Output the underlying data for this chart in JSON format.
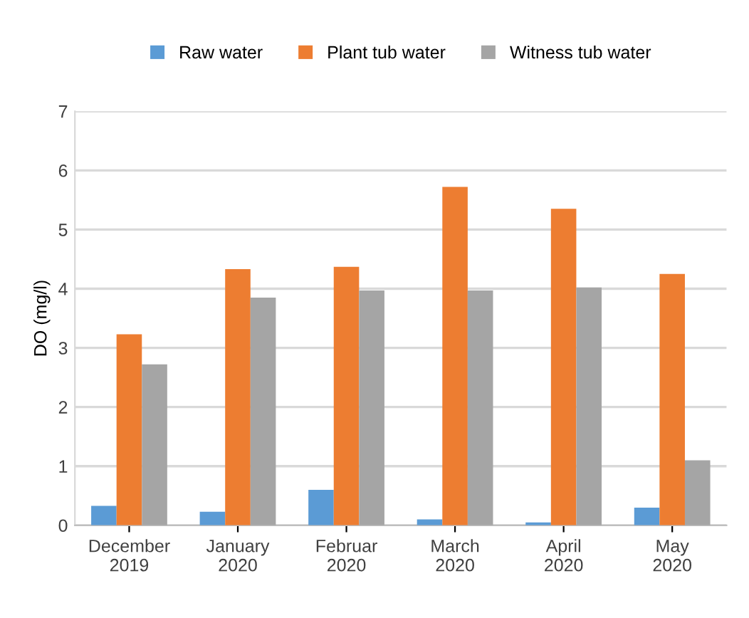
{
  "chart_data": {
    "type": "bar",
    "ylabel": "DO (mg/l)",
    "categories": [
      "December\n2019",
      "January\n2020",
      "Februar\n2020",
      "March\n2020",
      "April\n2020",
      "May\n2020"
    ],
    "series": [
      {
        "name": "Raw water",
        "color": "#5b9bd5",
        "values": [
          0.33,
          0.23,
          0.6,
          0.1,
          0.05,
          0.3
        ]
      },
      {
        "name": "Plant tub water",
        "color": "#ed7d31",
        "values": [
          3.23,
          4.33,
          4.37,
          5.72,
          5.35,
          4.25
        ]
      },
      {
        "name": "Witness tub water",
        "color": "#a5a5a5",
        "values": [
          2.72,
          3.85,
          3.97,
          3.97,
          4.02,
          1.1
        ]
      }
    ],
    "ylim": [
      0,
      7
    ],
    "yticks": [
      0,
      1,
      2,
      3,
      4,
      5,
      6,
      7
    ],
    "grid": "y",
    "legend": "top"
  }
}
